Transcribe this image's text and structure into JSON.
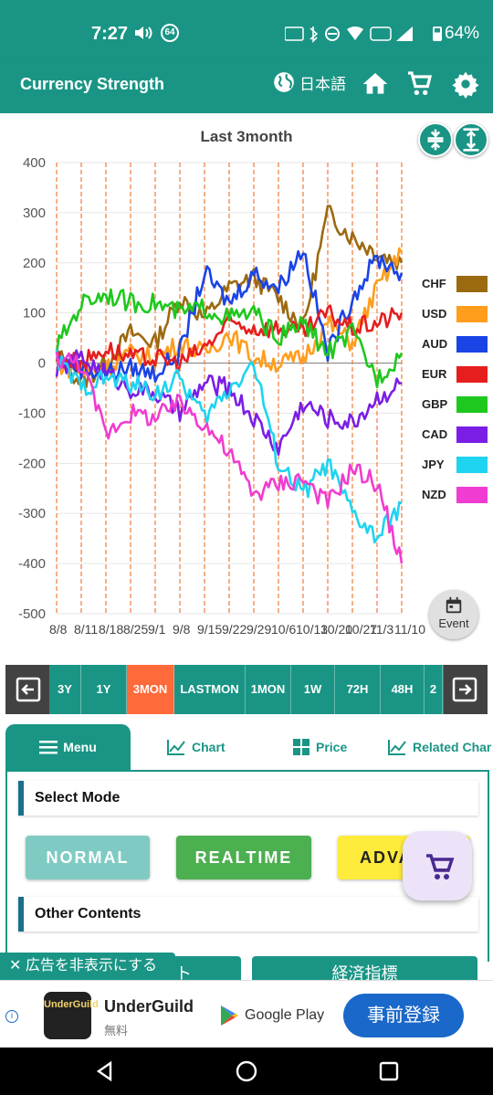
{
  "status_bar": {
    "time": "7:27",
    "badge": "64",
    "battery": "64%"
  },
  "app_bar": {
    "title": "Currency Strength",
    "language": "日本語"
  },
  "chart": {
    "title": "Last 3month",
    "event_label": "Event",
    "y_ticks": [
      "400",
      "300",
      "200",
      "100",
      "0",
      "-100",
      "-200",
      "-300",
      "-400",
      "-500"
    ],
    "x_ticks": [
      "8/8",
      "8/11",
      "8/18",
      "8/25",
      "9/1",
      "9/8",
      "9/15",
      "9/22",
      "9/29",
      "10/6",
      "10/13",
      "10/20",
      "10/27",
      "11/3",
      "11/10"
    ]
  },
  "chart_data": {
    "type": "line",
    "title": "Last 3month",
    "ylim": [
      -500,
      400
    ],
    "x": [
      "8/8",
      "8/11",
      "8/18",
      "8/25",
      "9/1",
      "9/8",
      "9/15",
      "9/22",
      "9/29",
      "10/6",
      "10/13",
      "10/20",
      "10/27",
      "11/3",
      "11/10"
    ],
    "legend_position": "right",
    "series": [
      {
        "name": "CHF",
        "color": "#9b6a10",
        "values": [
          20,
          -40,
          0,
          60,
          40,
          130,
          90,
          150,
          170,
          130,
          70,
          300,
          250,
          220,
          200
        ]
      },
      {
        "name": "USD",
        "color": "#ff9d1c",
        "values": [
          0,
          -20,
          -10,
          20,
          10,
          40,
          20,
          60,
          10,
          0,
          10,
          80,
          40,
          150,
          220
        ]
      },
      {
        "name": "AUD",
        "color": "#1a44e6",
        "values": [
          10,
          -10,
          -20,
          -10,
          -20,
          20,
          180,
          120,
          180,
          150,
          230,
          20,
          130,
          210,
          180
        ]
      },
      {
        "name": "EUR",
        "color": "#e61e1e",
        "values": [
          10,
          0,
          30,
          10,
          10,
          0,
          30,
          80,
          70,
          70,
          60,
          100,
          70,
          80,
          100
        ]
      },
      {
        "name": "GBP",
        "color": "#1ec81e",
        "values": [
          30,
          120,
          140,
          120,
          120,
          100,
          110,
          90,
          100,
          50,
          80,
          20,
          60,
          -30,
          20
        ]
      },
      {
        "name": "CAD",
        "color": "#7a1ee6",
        "values": [
          -10,
          10,
          -20,
          -50,
          -60,
          -100,
          -40,
          -50,
          -110,
          -170,
          -80,
          -110,
          -120,
          -70,
          -40
        ]
      },
      {
        "name": "JPY",
        "color": "#1ed4f0",
        "values": [
          10,
          -50,
          -30,
          -40,
          -60,
          -30,
          -110,
          -50,
          0,
          -200,
          -260,
          -200,
          -300,
          -350,
          -280
        ]
      },
      {
        "name": "NZD",
        "color": "#f03cd0",
        "values": [
          10,
          0,
          -140,
          -100,
          -110,
          -80,
          -120,
          -180,
          -260,
          -240,
          -230,
          -280,
          -210,
          -240,
          -400
        ]
      }
    ]
  },
  "periods": {
    "items": [
      "3Y",
      "1Y",
      "3MON",
      "LASTMON",
      "1MON",
      "1W",
      "72H",
      "48H",
      "2"
    ],
    "active": "3MON"
  },
  "tabs": [
    "Menu",
    "Chart",
    "Price",
    "Related Char"
  ],
  "panel": {
    "select_mode": "Select Mode",
    "modes": [
      "NORMAL",
      "REALTIME",
      "ADVA"
    ],
    "other_contents": "Other Contents",
    "bottom_buttons": [
      "ト",
      "経済指標"
    ]
  },
  "ad": {
    "hide_label": "広告を非表示にする",
    "app_icon_text": "UnderGuild",
    "app_name": "UnderGuild",
    "price": "無料",
    "store": "Google Play",
    "cta": "事前登録"
  },
  "colors": {
    "primary": "#1a9585",
    "active_period": "#ff6a3a",
    "normal": "#7fcbc3",
    "realtime": "#4caf50",
    "advanced": "#ffeb3b"
  }
}
